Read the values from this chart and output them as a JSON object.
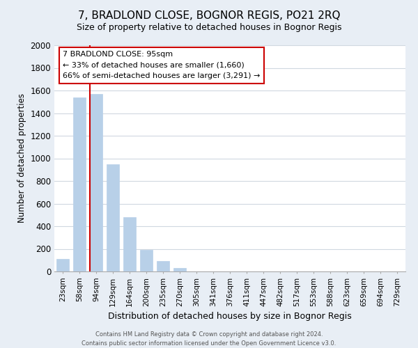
{
  "title": "7, BRADLOND CLOSE, BOGNOR REGIS, PO21 2RQ",
  "subtitle": "Size of property relative to detached houses in Bognor Regis",
  "xlabel": "Distribution of detached houses by size in Bognor Regis",
  "ylabel": "Number of detached properties",
  "bar_labels": [
    "23sqm",
    "58sqm",
    "94sqm",
    "129sqm",
    "164sqm",
    "200sqm",
    "235sqm",
    "270sqm",
    "305sqm",
    "341sqm",
    "376sqm",
    "411sqm",
    "447sqm",
    "482sqm",
    "517sqm",
    "553sqm",
    "588sqm",
    "623sqm",
    "659sqm",
    "694sqm",
    "729sqm"
  ],
  "bar_values": [
    110,
    1540,
    1570,
    950,
    480,
    190,
    95,
    30,
    0,
    0,
    0,
    0,
    0,
    0,
    0,
    0,
    0,
    0,
    0,
    0,
    0
  ],
  "bar_color": "#b8d0e8",
  "property_label": "7 BRADLOND CLOSE: 95sqm",
  "annotation_line1": "← 33% of detached houses are smaller (1,660)",
  "annotation_line2": "66% of semi-detached houses are larger (3,291) →",
  "vline_color": "#cc0000",
  "box_edgecolor": "#cc0000",
  "ylim": [
    0,
    2000
  ],
  "yticks": [
    0,
    200,
    400,
    600,
    800,
    1000,
    1200,
    1400,
    1600,
    1800,
    2000
  ],
  "footer_line1": "Contains HM Land Registry data © Crown copyright and database right 2024.",
  "footer_line2": "Contains public sector information licensed under the Open Government Licence v3.0.",
  "fig_facecolor": "#e8eef5",
  "plot_facecolor": "#ffffff",
  "title_fontsize": 11,
  "subtitle_fontsize": 9
}
